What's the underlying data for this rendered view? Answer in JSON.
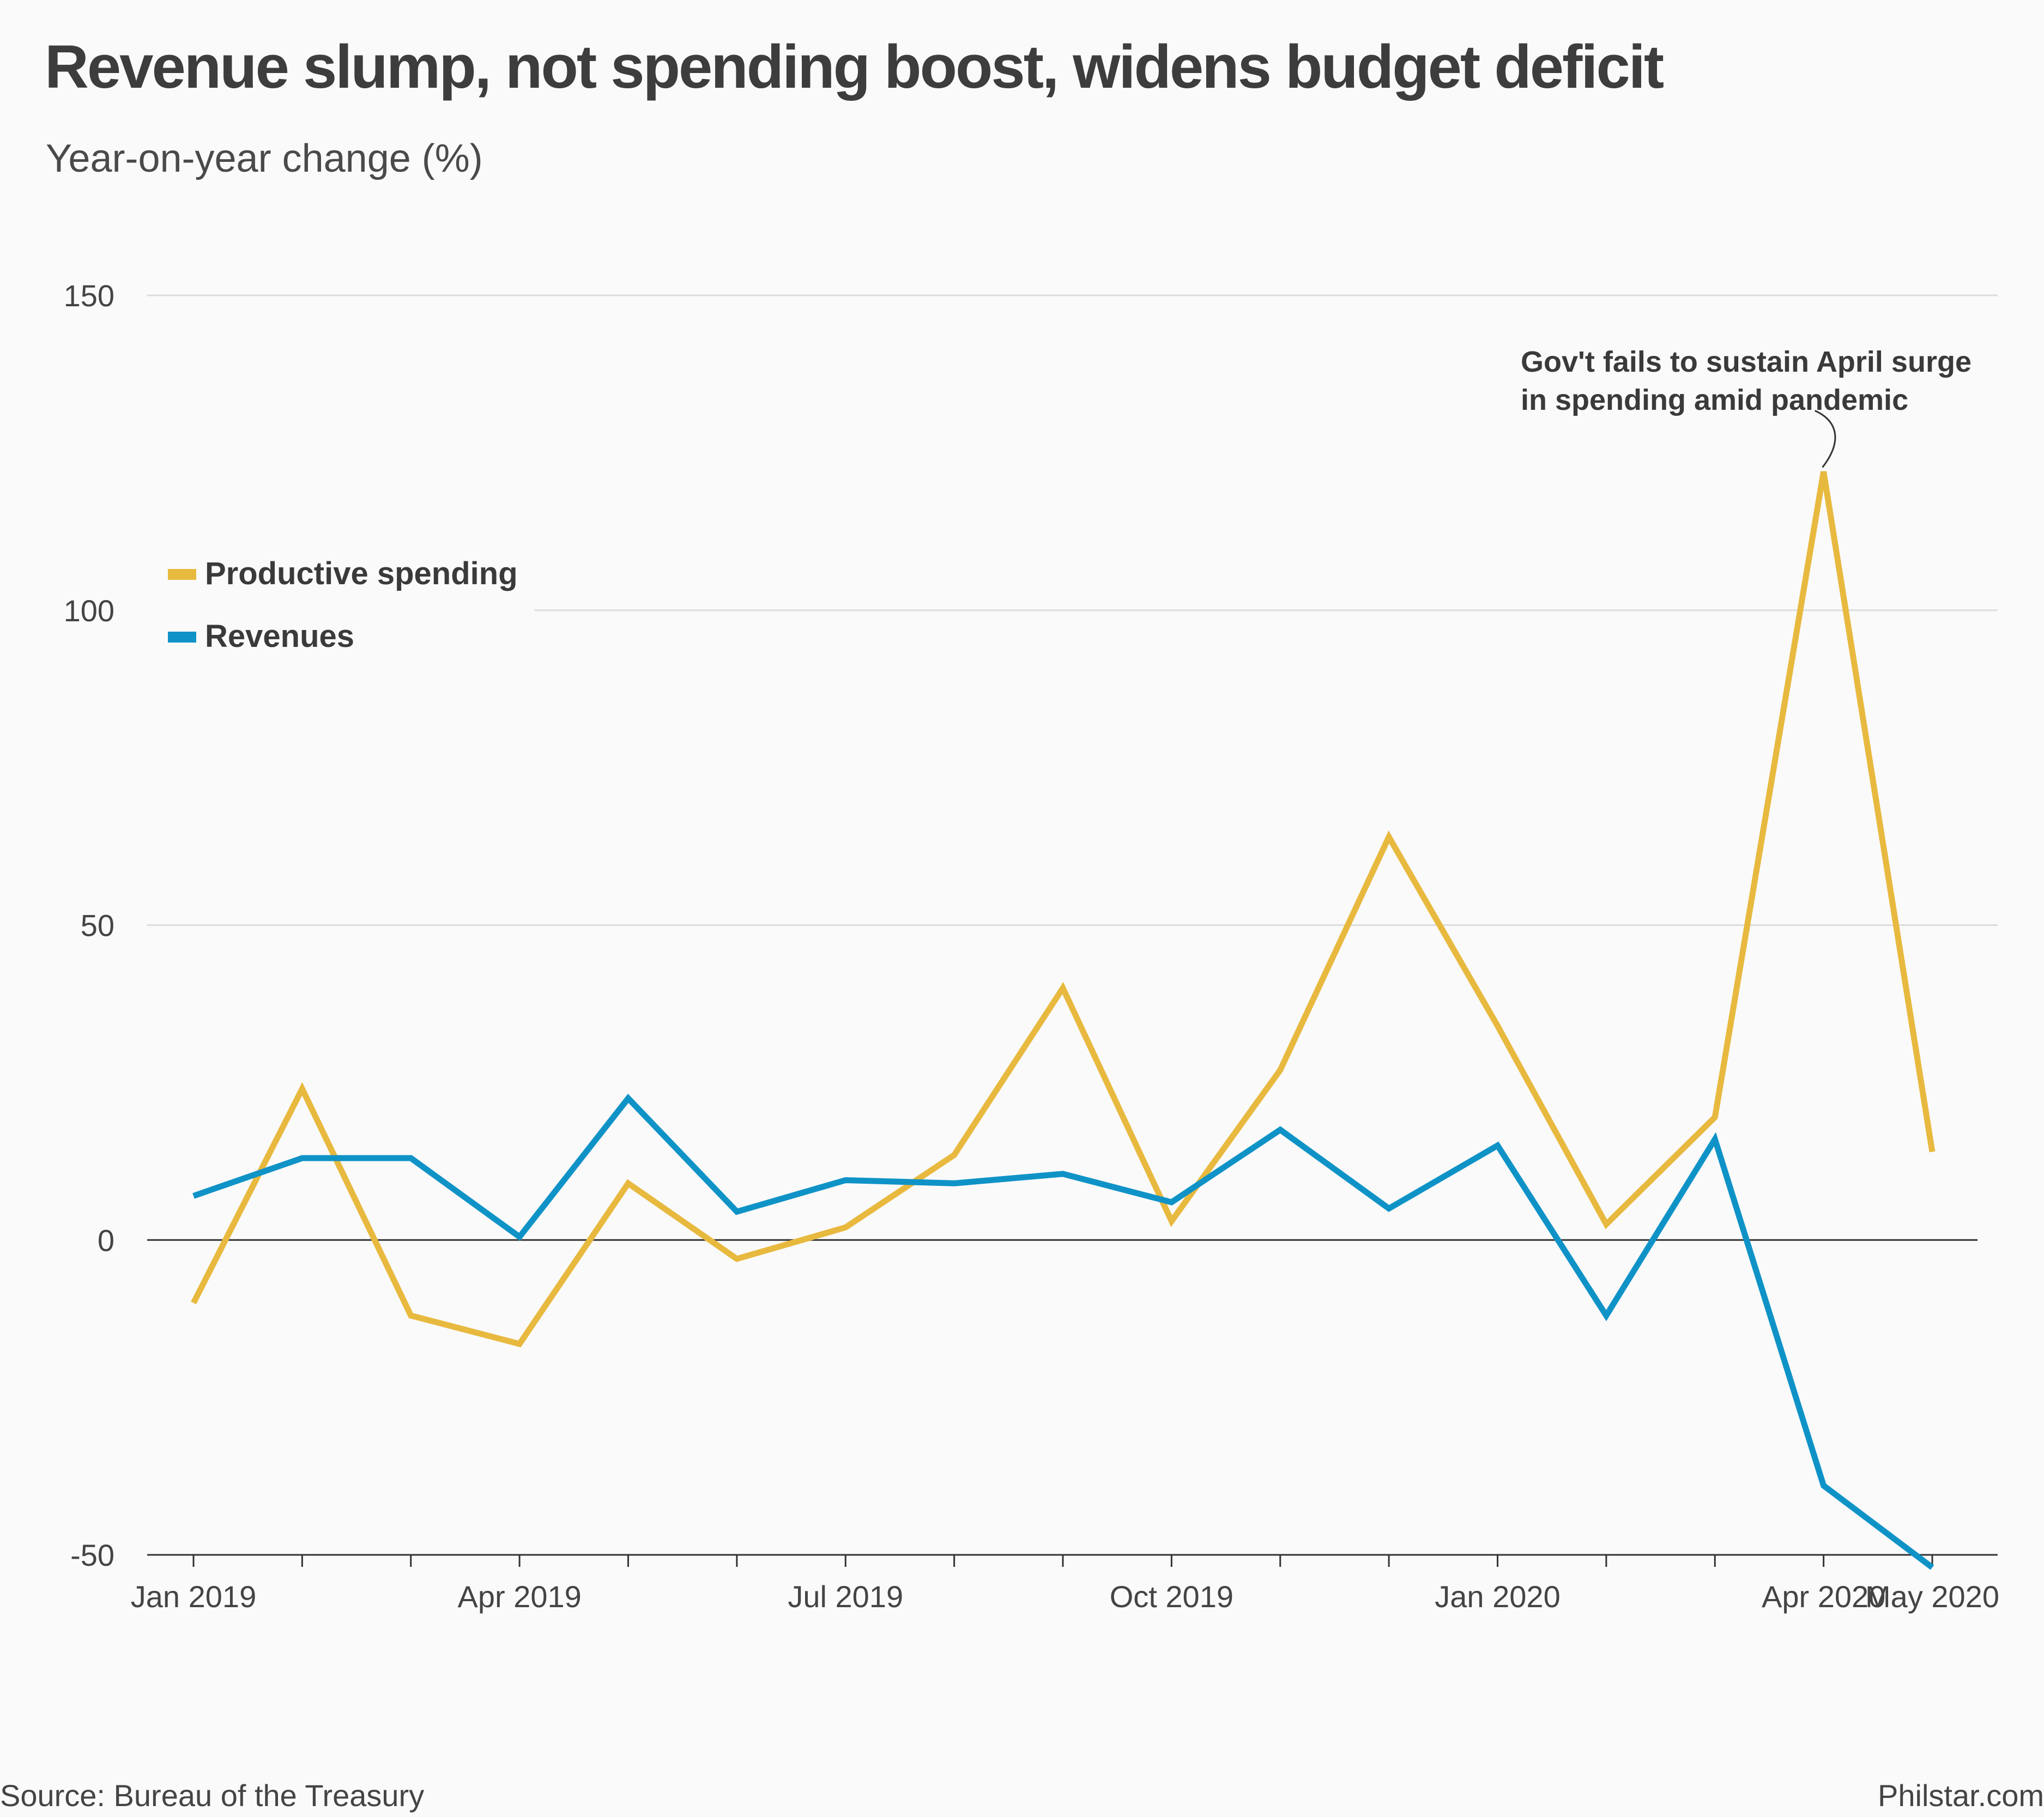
{
  "title": "Revenue slump, not spending boost, widens budget deficit",
  "subtitle": "Year-on-year change (%)",
  "source": "Source: Bureau of the Treasury",
  "credit": "Philstar.com",
  "chart_data": {
    "type": "line",
    "x": [
      "2019-01",
      "2019-02",
      "2019-03",
      "2019-04",
      "2019-05",
      "2019-06",
      "2019-07",
      "2019-08",
      "2019-09",
      "2019-10",
      "2019-11",
      "2019-12",
      "2020-01",
      "2020-02",
      "2020-03",
      "2020-04",
      "2020-05"
    ],
    "x_tick_labels": [
      {
        "x": "2019-01",
        "label": "Jan 2019"
      },
      {
        "x": "2019-04",
        "label": "Apr 2019"
      },
      {
        "x": "2019-07",
        "label": "Jul 2019"
      },
      {
        "x": "2019-10",
        "label": "Oct 2019"
      },
      {
        "x": "2020-01",
        "label": "Jan 2020"
      },
      {
        "x": "2020-04",
        "label": "Apr 2020"
      },
      {
        "x": "2020-05",
        "label": "May 2020"
      }
    ],
    "ylim": [
      -50,
      150
    ],
    "yticks": [
      -50,
      0,
      50,
      100,
      150
    ],
    "grid": true,
    "legend_position": "top-left",
    "series": [
      {
        "name": "Productive spending",
        "color": "#e8b93f",
        "values": [
          -10,
          24,
          -12,
          -16.5,
          9,
          -3,
          2,
          13.5,
          40,
          3,
          27,
          64,
          34,
          2.5,
          19.5,
          122,
          14
        ]
      },
      {
        "name": "Revenues",
        "color": "#0f93c7",
        "values": [
          7,
          13,
          13,
          0.5,
          22.5,
          4.5,
          9.5,
          9,
          10.5,
          6,
          17.5,
          5,
          15,
          -12,
          16,
          -39,
          -52
        ]
      }
    ],
    "annotations": [
      {
        "x": "2020-04",
        "y": 122,
        "lines": [
          "Gov't fails to sustain April surge",
          "in spending amid pandemic"
        ]
      }
    ]
  }
}
